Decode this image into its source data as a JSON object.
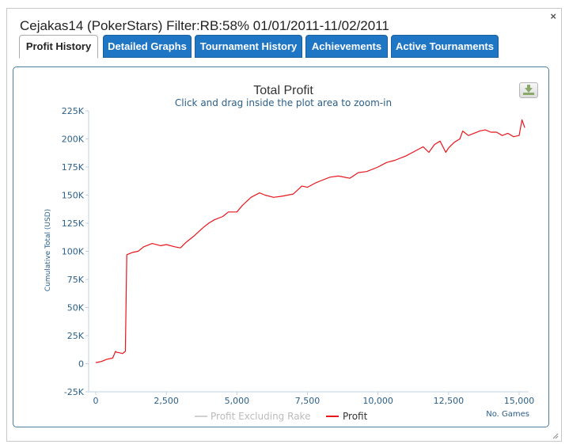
{
  "window": {
    "title": "Cejakas14 (PokerStars) Filter:RB:58% 01/01/2011-11/02/2011",
    "close_glyph": "×"
  },
  "tabs": [
    {
      "label": "Profit History",
      "active": true
    },
    {
      "label": "Detailed Graphs",
      "active": false
    },
    {
      "label": "Tournament History",
      "active": false
    },
    {
      "label": "Achievements",
      "active": false
    },
    {
      "label": "Active Tournaments",
      "active": false
    }
  ],
  "colors": {
    "tab_blue": "#1f76c4",
    "profit_line": "#e8151c",
    "excl_rake_line": "#d0d0d0",
    "axis_text": "#2a5f8a"
  },
  "icons": {
    "export": "download-icon",
    "close": "close-icon",
    "resize": "resize-grip-icon"
  },
  "chart_data": {
    "type": "line",
    "title": "Total Profit",
    "subtitle": "Click and drag inside the plot area to zoom-in",
    "xlabel": "No. Games",
    "ylabel": "Cumulative Total (USD)",
    "xlim": [
      0,
      15300
    ],
    "ylim": [
      -25000,
      225000
    ],
    "x_ticks": [
      "0",
      "2,500",
      "5,000",
      "7,500",
      "10,000",
      "12,500",
      "15,000"
    ],
    "y_ticks": [
      "225K",
      "200K",
      "175K",
      "150K",
      "125K",
      "100K",
      "75K",
      "50K",
      "25K",
      "0",
      "-25K"
    ],
    "legend_position": "bottom-center",
    "series": [
      {
        "name": "Profit Excluding Rake",
        "color": "#d0d0d0",
        "x": [],
        "y": []
      },
      {
        "name": "Profit",
        "color": "#e8151c",
        "x": [
          0,
          200,
          400,
          600,
          700,
          750,
          800,
          950,
          1050,
          1100,
          1300,
          1500,
          1700,
          2000,
          2300,
          2500,
          2800,
          3000,
          3200,
          3500,
          3800,
          4000,
          4200,
          4500,
          4700,
          5000,
          5200,
          5500,
          5800,
          6000,
          6300,
          6600,
          7000,
          7300,
          7500,
          7800,
          8000,
          8300,
          8600,
          9000,
          9300,
          9600,
          10000,
          10300,
          10600,
          11000,
          11300,
          11600,
          11800,
          12000,
          12200,
          12300,
          12400,
          12500,
          12700,
          12900,
          13000,
          13200,
          13400,
          13600,
          13800,
          14000,
          14200,
          14400,
          14600,
          14800,
          15000,
          15100,
          15200
        ],
        "y": [
          1000,
          2000,
          4000,
          5000,
          11000,
          10000,
          10000,
          9000,
          11000,
          97000,
          99000,
          100000,
          104000,
          107000,
          105000,
          106000,
          104000,
          103000,
          108000,
          114000,
          121000,
          125000,
          128000,
          131000,
          135000,
          135000,
          141000,
          148000,
          152000,
          150000,
          148000,
          149000,
          151000,
          158000,
          157000,
          161000,
          163000,
          166000,
          167000,
          165000,
          170000,
          171000,
          175000,
          179000,
          181000,
          185000,
          189000,
          193000,
          188000,
          195000,
          198000,
          193000,
          188000,
          192000,
          197000,
          200000,
          207000,
          203000,
          205000,
          207000,
          208000,
          206000,
          206000,
          203000,
          205000,
          202000,
          203000,
          217000,
          210000
        ]
      }
    ]
  }
}
